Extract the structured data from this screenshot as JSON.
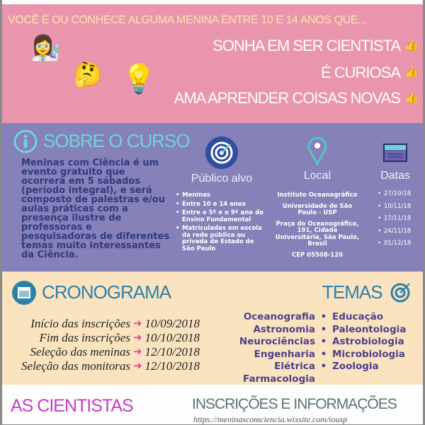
{
  "intro": {
    "headline": "VOCÊ É OU CONHECE ALGUMA MENINA ENTRE 10 E 14 ANOS QUE...",
    "items": [
      "SONHA EM SER CIENTISTA",
      "É CURIOSA",
      "AMA APRENDER COISAS NOVAS"
    ],
    "item_icon": "thumbs-up-icon",
    "emojis": [
      "scientist-emoji",
      "thinking-emoji",
      "minion-lightbulb-emoji"
    ]
  },
  "about": {
    "title": "SOBRE O CURSO",
    "icon": "info-icon",
    "description": "Meninas com Ciência é um evento gratuito que ocorrerá em 5 sábados (período integral), e será composto de palestras e/ou aulas práticas com a presença ilustre de professoras e pesquisadoras de diferentes temas muito interessantes da Ciência.",
    "audience": {
      "title": "Público alvo",
      "icon": "target-icon",
      "items": [
        "Meninas",
        "Entre 10 e 14 anos",
        "Entre o 5º e o 9º ano do Ensino Fundamental",
        "Matriculadas em escola da rede pública ou privada do Estado de São Paulo"
      ]
    },
    "location": {
      "title": "Local",
      "icon": "map-pin-icon",
      "lines": [
        "Instituto Oceanográfico",
        "Universidade de São Paulo - USP",
        "Praça do Oceanográfico, 191, Cidade Universitária, São Paulo, Brasil",
        "CEP 05508-120"
      ]
    },
    "dates": {
      "title": "Datas",
      "icon": "calendar-icon",
      "items": [
        "27/10/18",
        "10/11/18",
        "17/11/18",
        "24/11/18",
        "01/12/18"
      ]
    }
  },
  "schedule": {
    "title": "CRONOGRAMA",
    "rows": [
      {
        "label": "Início das inscrições",
        "date": "10/09/2018"
      },
      {
        "label": "Fim das inscrições",
        "date": "10/10/2018"
      },
      {
        "label": "Seleção das meninas",
        "date": "12/10/2018"
      },
      {
        "label": "Seleção das monitoras",
        "date": "12/10/2018"
      }
    ]
  },
  "themes": {
    "title": "TEMAS",
    "left": [
      "Oceanografia",
      "Astronomia",
      "Neurociências",
      "Engenharia Elétrica",
      "Farmacologia"
    ],
    "right": [
      "Educação",
      "Paleontologia",
      "Astrobiologia",
      "Microbiologia",
      "Zoologia"
    ]
  },
  "footer": {
    "scientists_title": "AS CIENTISTAS",
    "info_title": "INSCRIÇÕES E INFORMAÇÕES",
    "url": "https://meninascomciencia.wixsite.com/iousp"
  },
  "colors": {
    "pink": "#e995ae",
    "purple": "#8681b9",
    "beige": "#fbe3bf",
    "teal": "#6fd3d8",
    "accent_pink": "#ee3d9e",
    "blue_title": "#2b82a8",
    "magenta_title": "#c43fc8"
  }
}
